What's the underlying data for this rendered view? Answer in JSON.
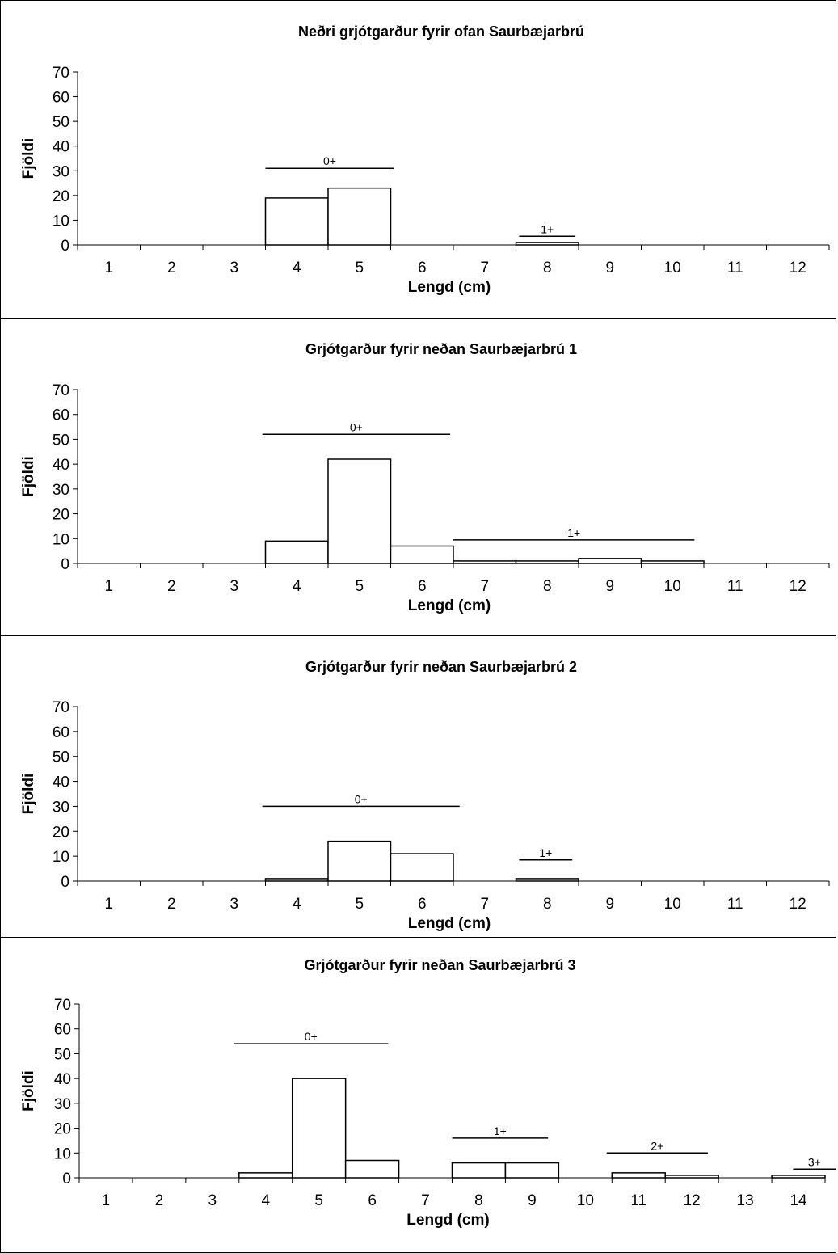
{
  "chart_data": [
    {
      "type": "bar",
      "title": "Neðri grjótgarður fyrir ofan Saurbæjarbrú",
      "xlabel": "Lengd (cm)",
      "ylabel": "Fjöldi",
      "ylim": [
        0,
        70
      ],
      "yticks": [
        0,
        10,
        20,
        30,
        40,
        50,
        60,
        70
      ],
      "categories": [
        "1",
        "2",
        "3",
        "4",
        "5",
        "6",
        "7",
        "8",
        "9",
        "10",
        "11",
        "12"
      ],
      "values": [
        0,
        0,
        0,
        19,
        23,
        0,
        0,
        1,
        0,
        0,
        0,
        0
      ],
      "age_groups": [
        {
          "label": "0+",
          "from": 3.5,
          "to": 5.55,
          "y": 31
        },
        {
          "label": "1+",
          "from": 7.55,
          "to": 8.45,
          "y": 3.5
        }
      ]
    },
    {
      "type": "bar",
      "title": "Grjótgarður fyrir neðan Saurbæjarbrú 1",
      "xlabel": "Lengd (cm)",
      "ylabel": "Fjöldi",
      "ylim": [
        0,
        70
      ],
      "yticks": [
        0,
        10,
        20,
        30,
        40,
        50,
        60,
        70
      ],
      "categories": [
        "1",
        "2",
        "3",
        "4",
        "5",
        "6",
        "7",
        "8",
        "9",
        "10",
        "11",
        "12"
      ],
      "values": [
        0,
        0,
        0,
        9,
        42,
        7,
        1,
        1,
        2,
        1,
        0,
        0
      ],
      "age_groups": [
        {
          "label": "0+",
          "from": 3.45,
          "to": 6.45,
          "y": 52
        },
        {
          "label": "1+",
          "from": 6.5,
          "to": 10.35,
          "y": 9.5
        }
      ]
    },
    {
      "type": "bar",
      "title": "Grjótgarður fyrir neðan Saurbæjarbrú 2",
      "xlabel": "Lengd (cm)",
      "ylabel": "Fjöldi",
      "ylim": [
        0,
        70
      ],
      "yticks": [
        0,
        10,
        20,
        30,
        40,
        50,
        60,
        70
      ],
      "categories": [
        "1",
        "2",
        "3",
        "4",
        "5",
        "6",
        "7",
        "8",
        "9",
        "10",
        "11",
        "12"
      ],
      "values": [
        0,
        0,
        0,
        1,
        16,
        11,
        0,
        1,
        0,
        0,
        0,
        0
      ],
      "age_groups": [
        {
          "label": "0+",
          "from": 3.45,
          "to": 6.6,
          "y": 30
        },
        {
          "label": "1+",
          "from": 7.55,
          "to": 8.4,
          "y": 8.5
        }
      ]
    },
    {
      "type": "bar",
      "title": "Grjótgarður fyrir neðan Saurbæjarbrú 3",
      "xlabel": "Lengd (cm)",
      "ylabel": "Fjöldi",
      "ylim": [
        0,
        70
      ],
      "yticks": [
        0,
        10,
        20,
        30,
        40,
        50,
        60,
        70
      ],
      "categories": [
        "1",
        "2",
        "3",
        "4",
        "5",
        "6",
        "7",
        "8",
        "9",
        "10",
        "11",
        "12",
        "13",
        "14"
      ],
      "values": [
        0,
        0,
        0,
        2,
        40,
        7,
        0,
        6,
        6,
        0,
        2,
        1,
        0,
        1
      ],
      "age_groups": [
        {
          "label": "0+",
          "from": 3.4,
          "to": 6.3,
          "y": 54
        },
        {
          "label": "1+",
          "from": 7.5,
          "to": 9.3,
          "y": 16
        },
        {
          "label": "2+",
          "from": 10.4,
          "to": 12.3,
          "y": 10
        },
        {
          "label": "3+",
          "from": 13.9,
          "to": 14.7,
          "y": 3.5
        }
      ]
    }
  ]
}
